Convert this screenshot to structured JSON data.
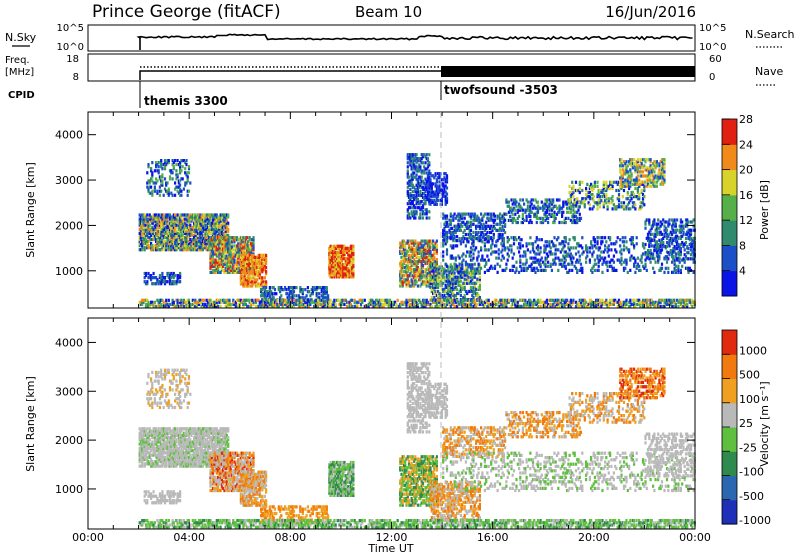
{
  "header": {
    "station": "Prince George (fitACF)",
    "beam": "Beam 10",
    "date": "16/Jun/2016"
  },
  "top_panels": {
    "nsky_label": "N.Sky",
    "nsky_ticks": [
      "10^5",
      "10^0"
    ],
    "nsearch_label": "N.Search",
    "nsearch_ticks": [
      "10^5",
      "10^0"
    ],
    "freq_label_1": "Freq.",
    "freq_label_2": "[MHz]",
    "freq_ticks": [
      "18",
      "8"
    ],
    "nave_label": "Nave",
    "nave_ticks": [
      "60",
      "0"
    ],
    "cpid_label": "CPID",
    "cpid_segments": [
      {
        "name": "themis 3300",
        "start": "02:00"
      },
      {
        "name": "twofsound -3503",
        "start": "14:00"
      }
    ]
  },
  "chart_data": [
    {
      "type": "heatmap",
      "title": "",
      "ylabel": "Slant Range [km]",
      "xlabel": "",
      "ylim": [
        180,
        4500
      ],
      "yticks": [
        "1000",
        "2000",
        "3000",
        "4000"
      ],
      "colorbar_label": "Power [dB]",
      "colorbar_ticks": [
        "4",
        "8",
        "12",
        "16",
        "20",
        "24",
        "28"
      ],
      "colorbar_colors": [
        "#0a14e6",
        "#1a4fc8",
        "#2f8a6e",
        "#55b04a",
        "#d8d32a",
        "#f08a1a",
        "#e02010"
      ]
    },
    {
      "type": "heatmap",
      "title": "",
      "ylabel": "Slant Range [km]",
      "xlabel": "Time UT",
      "ylim": [
        180,
        4500
      ],
      "yticks": [
        "1000",
        "2000",
        "3000",
        "4000"
      ],
      "xticks": [
        "00:00",
        "04:00",
        "08:00",
        "12:00",
        "16:00",
        "20:00",
        "00:00"
      ],
      "colorbar_label": "Velocity [m s⁻¹]",
      "colorbar_ticks": [
        "1000",
        "500",
        "100",
        "25",
        "-25",
        "-100",
        "-500",
        "-1000"
      ],
      "colorbar_colors": [
        "#1e2fb8",
        "#2a67b0",
        "#2f8a4e",
        "#5fc040",
        "#b9b9b9",
        "#f0a020",
        "#f07a10",
        "#e02a10"
      ]
    }
  ]
}
